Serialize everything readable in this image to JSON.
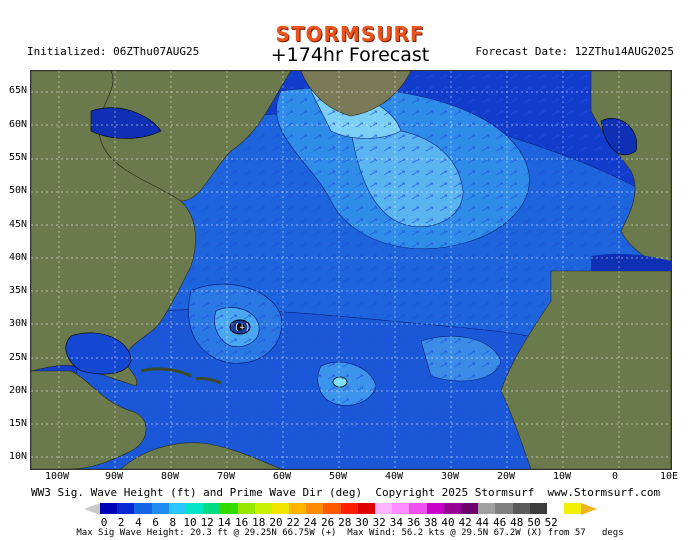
{
  "header": {
    "logo": "STORMSURF",
    "title": "+174hr Forecast",
    "initialized": "Initialized: 06ZThu07AUG25",
    "forecast_date": "Forecast Date: 12ZThu14AUG2025"
  },
  "map": {
    "lat_labels": [
      "65N",
      "60N",
      "55N",
      "50N",
      "45N",
      "40N",
      "35N",
      "30N",
      "25N",
      "20N",
      "15N",
      "10N"
    ],
    "lon_labels": [
      "100W",
      "90W",
      "80W",
      "70W",
      "60W",
      "50W",
      "40W",
      "30W",
      "20W",
      "10W",
      "0",
      "10E"
    ],
    "legend_tag": "(+)"
  },
  "caption": "WW3 Sig. Wave Height (ft) and Prime Wave Dir (deg)  Copyright 2025 Stormsurf  www.Stormsurf.com",
  "scale": {
    "ticks": [
      "0",
      "2",
      "4",
      "6",
      "8",
      "10",
      "12",
      "14",
      "16",
      "18",
      "20",
      "22",
      "24",
      "26",
      "28",
      "30",
      "32",
      "34",
      "36",
      "38",
      "40",
      "42",
      "44",
      "46",
      "48",
      "50",
      "52"
    ],
    "colors": [
      "#0000b4",
      "#0a28d2",
      "#1464e6",
      "#1e8cf0",
      "#28c8ff",
      "#00e6c8",
      "#00dc82",
      "#32dc00",
      "#96e600",
      "#c8f000",
      "#f0e600",
      "#ffb400",
      "#ff8c00",
      "#ff5a00",
      "#ff1e00",
      "#dc0000",
      "#ffb4ff",
      "#ff8cff",
      "#f050f0",
      "#c800c8",
      "#960096",
      "#6e006e",
      "#a0a0a0",
      "#808080",
      "#5a5a5a",
      "#3c3c3c",
      "#ffffff",
      "#f0f000"
    ]
  },
  "footer": "Max Sig Wave Height: 20.3 ft @ 29.25N 66.75W (+)  Max Wind: 56.2 kts @ 29.5N 67.2W (X) from 57   degs"
}
